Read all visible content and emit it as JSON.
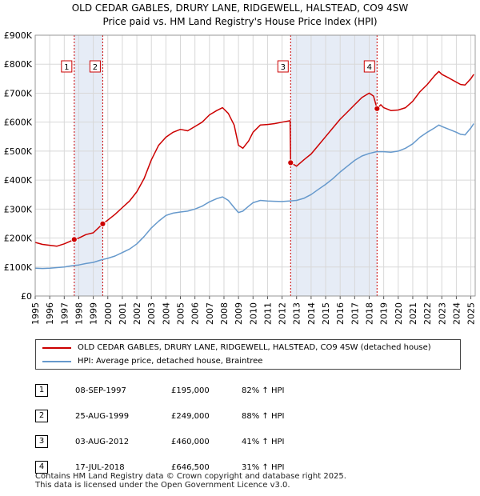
{
  "title": {
    "line1": "OLD CEDAR GABLES, DRURY LANE, RIDGEWELL, HALSTEAD, CO9 4SW",
    "line2": "Price paid vs. HM Land Registry's House Price Index (HPI)"
  },
  "chart_data": {
    "type": "line",
    "title": "OLD CEDAR GABLES, DRURY LANE, RIDGEWELL, HALSTEAD, CO9 4SW — Price paid vs. HM Land Registry's House Price Index (HPI)",
    "xlim": [
      1995,
      2025.3
    ],
    "ylim": [
      0,
      900000
    ],
    "x_ticks": [
      "1995",
      "1996",
      "1997",
      "1998",
      "1999",
      "2000",
      "2001",
      "2002",
      "2003",
      "2004",
      "2005",
      "2006",
      "2007",
      "2008",
      "2009",
      "2010",
      "2011",
      "2012",
      "2013",
      "2014",
      "2015",
      "2016",
      "2017",
      "2018",
      "2019",
      "2020",
      "2021",
      "2022",
      "2023",
      "2024",
      "2025"
    ],
    "y_ticks": [
      {
        "value": 0,
        "label": "£0"
      },
      {
        "value": 100000,
        "label": "£100K"
      },
      {
        "value": 200000,
        "label": "£200K"
      },
      {
        "value": 300000,
        "label": "£300K"
      },
      {
        "value": 400000,
        "label": "£400K"
      },
      {
        "value": 500000,
        "label": "£500K"
      },
      {
        "value": 600000,
        "label": "£600K"
      },
      {
        "value": 700000,
        "label": "£700K"
      },
      {
        "value": 800000,
        "label": "£800K"
      },
      {
        "value": 900000,
        "label": "£900K"
      }
    ],
    "grid": true,
    "series": [
      {
        "name": "OLD CEDAR GABLES, DRURY LANE, RIDGEWELL, HALSTEAD, CO9 4SW (detached house)",
        "color": "#cc0000",
        "points": [
          [
            1995.0,
            185000
          ],
          [
            1995.5,
            178000
          ],
          [
            1996.0,
            175000
          ],
          [
            1996.5,
            172000
          ],
          [
            1997.0,
            180000
          ],
          [
            1997.69,
            195000
          ],
          [
            1998.0,
            200000
          ],
          [
            1998.5,
            212000
          ],
          [
            1999.0,
            218000
          ],
          [
            1999.65,
            249000
          ],
          [
            2000.0,
            262000
          ],
          [
            2000.5,
            282000
          ],
          [
            2001.0,
            305000
          ],
          [
            2001.5,
            328000
          ],
          [
            2002.0,
            360000
          ],
          [
            2002.5,
            405000
          ],
          [
            2003.0,
            470000
          ],
          [
            2003.5,
            520000
          ],
          [
            2004.0,
            548000
          ],
          [
            2004.5,
            565000
          ],
          [
            2005.0,
            575000
          ],
          [
            2005.5,
            570000
          ],
          [
            2006.0,
            585000
          ],
          [
            2006.5,
            600000
          ],
          [
            2007.0,
            625000
          ],
          [
            2007.5,
            640000
          ],
          [
            2007.9,
            650000
          ],
          [
            2008.3,
            630000
          ],
          [
            2008.7,
            590000
          ],
          [
            2009.0,
            520000
          ],
          [
            2009.3,
            510000
          ],
          [
            2009.7,
            535000
          ],
          [
            2010.0,
            565000
          ],
          [
            2010.5,
            590000
          ],
          [
            2011.0,
            592000
          ],
          [
            2011.5,
            595000
          ],
          [
            2012.0,
            600000
          ],
          [
            2012.55,
            605000
          ],
          [
            2012.59,
            460000
          ],
          [
            2013.0,
            448000
          ],
          [
            2013.5,
            470000
          ],
          [
            2014.0,
            490000
          ],
          [
            2014.5,
            520000
          ],
          [
            2015.0,
            550000
          ],
          [
            2015.5,
            580000
          ],
          [
            2016.0,
            610000
          ],
          [
            2016.5,
            635000
          ],
          [
            2017.0,
            660000
          ],
          [
            2017.5,
            685000
          ],
          [
            2018.0,
            700000
          ],
          [
            2018.3,
            690000
          ],
          [
            2018.54,
            646500
          ],
          [
            2018.8,
            660000
          ],
          [
            2019.0,
            650000
          ],
          [
            2019.5,
            640000
          ],
          [
            2020.0,
            642000
          ],
          [
            2020.5,
            650000
          ],
          [
            2021.0,
            672000
          ],
          [
            2021.5,
            705000
          ],
          [
            2022.0,
            730000
          ],
          [
            2022.5,
            760000
          ],
          [
            2022.8,
            775000
          ],
          [
            2023.0,
            765000
          ],
          [
            2023.5,
            752000
          ],
          [
            2024.0,
            738000
          ],
          [
            2024.3,
            730000
          ],
          [
            2024.6,
            728000
          ],
          [
            2025.0,
            750000
          ],
          [
            2025.2,
            765000
          ]
        ]
      },
      {
        "name": "HPI: Average price, detached house, Braintree",
        "color": "#6699cc",
        "points": [
          [
            1995.0,
            96000
          ],
          [
            1995.5,
            95000
          ],
          [
            1996.0,
            96000
          ],
          [
            1996.5,
            98000
          ],
          [
            1997.0,
            100000
          ],
          [
            1997.5,
            104000
          ],
          [
            1998.0,
            107000
          ],
          [
            1998.5,
            112000
          ],
          [
            1999.0,
            116000
          ],
          [
            1999.5,
            124000
          ],
          [
            2000.0,
            130000
          ],
          [
            2000.5,
            138000
          ],
          [
            2001.0,
            150000
          ],
          [
            2001.5,
            162000
          ],
          [
            2002.0,
            180000
          ],
          [
            2002.5,
            205000
          ],
          [
            2003.0,
            235000
          ],
          [
            2003.5,
            258000
          ],
          [
            2004.0,
            278000
          ],
          [
            2004.5,
            286000
          ],
          [
            2005.0,
            290000
          ],
          [
            2005.5,
            293000
          ],
          [
            2006.0,
            300000
          ],
          [
            2006.5,
            310000
          ],
          [
            2007.0,
            325000
          ],
          [
            2007.5,
            336000
          ],
          [
            2007.9,
            342000
          ],
          [
            2008.3,
            330000
          ],
          [
            2008.7,
            305000
          ],
          [
            2009.0,
            288000
          ],
          [
            2009.3,
            293000
          ],
          [
            2009.7,
            310000
          ],
          [
            2010.0,
            322000
          ],
          [
            2010.5,
            330000
          ],
          [
            2011.0,
            328000
          ],
          [
            2011.5,
            327000
          ],
          [
            2012.0,
            326000
          ],
          [
            2012.5,
            328000
          ],
          [
            2013.0,
            330000
          ],
          [
            2013.5,
            337000
          ],
          [
            2014.0,
            350000
          ],
          [
            2014.5,
            368000
          ],
          [
            2015.0,
            385000
          ],
          [
            2015.5,
            405000
          ],
          [
            2016.0,
            428000
          ],
          [
            2016.5,
            448000
          ],
          [
            2017.0,
            468000
          ],
          [
            2017.5,
            483000
          ],
          [
            2018.0,
            492000
          ],
          [
            2018.5,
            498000
          ],
          [
            2019.0,
            498000
          ],
          [
            2019.5,
            496000
          ],
          [
            2020.0,
            500000
          ],
          [
            2020.5,
            510000
          ],
          [
            2021.0,
            525000
          ],
          [
            2021.5,
            548000
          ],
          [
            2022.0,
            565000
          ],
          [
            2022.5,
            580000
          ],
          [
            2022.8,
            590000
          ],
          [
            2023.0,
            585000
          ],
          [
            2023.5,
            575000
          ],
          [
            2024.0,
            565000
          ],
          [
            2024.3,
            558000
          ],
          [
            2024.6,
            556000
          ],
          [
            2025.0,
            580000
          ],
          [
            2025.2,
            595000
          ]
        ]
      }
    ],
    "sales": [
      {
        "id": "1",
        "x": 1997.69,
        "price": 195000,
        "date": "08-SEP-1997",
        "price_label": "£195,000",
        "hpi": "82% ↑ HPI"
      },
      {
        "id": "2",
        "x": 1999.65,
        "price": 249000,
        "date": "25-AUG-1999",
        "price_label": "£249,000",
        "hpi": "88% ↑ HPI"
      },
      {
        "id": "3",
        "x": 2012.59,
        "price": 460000,
        "date": "03-AUG-2012",
        "price_label": "£460,000",
        "hpi": "41% ↑ HPI"
      },
      {
        "id": "4",
        "x": 2018.54,
        "price": 646500,
        "date": "17-JUL-2018",
        "price_label": "£646,500",
        "hpi": "31% ↑ HPI"
      }
    ],
    "shaded_spans": [
      [
        1997.69,
        1999.65
      ],
      [
        2012.59,
        2018.54
      ]
    ],
    "legend": {
      "placement": "below",
      "entries": [
        "OLD CEDAR GABLES, DRURY LANE, RIDGEWELL, HALSTEAD, CO9 4SW (detached house)",
        "HPI: Average price, detached house, Braintree"
      ]
    }
  },
  "footer": {
    "line1": "Contains HM Land Registry data © Crown copyright and database right 2025.",
    "line2": "This data is licensed under the Open Government Licence v3.0."
  }
}
